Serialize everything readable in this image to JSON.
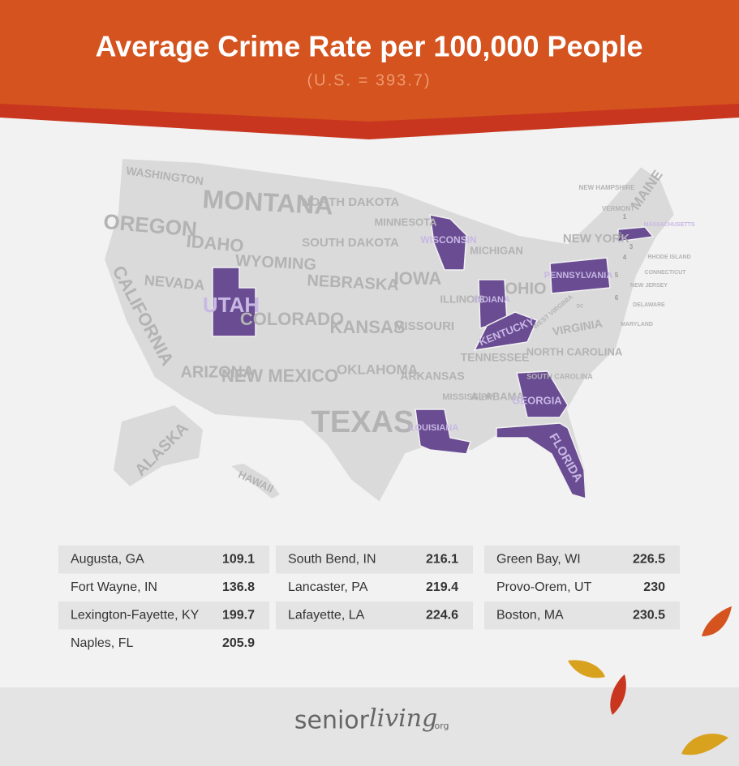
{
  "header": {
    "title": "Average Crime Rate per 100,000 People",
    "subtitle": "(U.S. = 393.7)"
  },
  "map": {
    "states": [
      {
        "name": "WASHINGTON",
        "highlighted": false
      },
      {
        "name": "OREGON",
        "highlighted": false
      },
      {
        "name": "CALIFORNIA",
        "highlighted": false
      },
      {
        "name": "NEVADA",
        "highlighted": false
      },
      {
        "name": "IDAHO",
        "highlighted": false
      },
      {
        "name": "MONTANA",
        "highlighted": false
      },
      {
        "name": "WYOMING",
        "highlighted": false
      },
      {
        "name": "UTAH",
        "highlighted": true
      },
      {
        "name": "COLORADO",
        "highlighted": false
      },
      {
        "name": "ARIZONA",
        "highlighted": false
      },
      {
        "name": "NEW MEXICO",
        "highlighted": false
      },
      {
        "name": "NORTH DAKOTA",
        "highlighted": false
      },
      {
        "name": "SOUTH DAKOTA",
        "highlighted": false
      },
      {
        "name": "NEBRASKA",
        "highlighted": false
      },
      {
        "name": "KANSAS",
        "highlighted": false
      },
      {
        "name": "OKLAHOMA",
        "highlighted": false
      },
      {
        "name": "TEXAS",
        "highlighted": false
      },
      {
        "name": "MINNESOTA",
        "highlighted": false
      },
      {
        "name": "IOWA",
        "highlighted": false
      },
      {
        "name": "MISSOURI",
        "highlighted": false
      },
      {
        "name": "ARKANSAS",
        "highlighted": false
      },
      {
        "name": "LOUISIANA",
        "highlighted": true
      },
      {
        "name": "WISCONSIN",
        "highlighted": true
      },
      {
        "name": "ILLINOIS",
        "highlighted": false
      },
      {
        "name": "MICHIGAN",
        "highlighted": false
      },
      {
        "name": "INDIANA",
        "highlighted": true
      },
      {
        "name": "OHIO",
        "highlighted": false
      },
      {
        "name": "KENTUCKY",
        "highlighted": true
      },
      {
        "name": "TENNESSEE",
        "highlighted": false
      },
      {
        "name": "MISSISSIPPI",
        "highlighted": false
      },
      {
        "name": "ALABAMA",
        "highlighted": false
      },
      {
        "name": "GEORGIA",
        "highlighted": true
      },
      {
        "name": "FLORIDA",
        "highlighted": true
      },
      {
        "name": "SOUTH CAROLINA",
        "highlighted": false
      },
      {
        "name": "NORTH CAROLINA",
        "highlighted": false
      },
      {
        "name": "VIRGINIA",
        "highlighted": false
      },
      {
        "name": "WEST VIRGINIA",
        "highlighted": false
      },
      {
        "name": "PENNSYLVANIA",
        "highlighted": true
      },
      {
        "name": "NEW YORK",
        "highlighted": false
      },
      {
        "name": "MAINE",
        "highlighted": false
      },
      {
        "name": "VERMONT",
        "highlighted": false
      },
      {
        "name": "NEW HAMPSHIRE",
        "highlighted": false
      },
      {
        "name": "MASSACHUSETTS",
        "highlighted": true
      },
      {
        "name": "RHODE ISLAND",
        "highlighted": false
      },
      {
        "name": "CONNECTICUT",
        "highlighted": false
      },
      {
        "name": "NEW JERSEY",
        "highlighted": false
      },
      {
        "name": "DELAWARE",
        "highlighted": false
      },
      {
        "name": "MARYLAND",
        "highlighted": false
      },
      {
        "name": "ALASKA",
        "highlighted": false
      },
      {
        "name": "HAWAII",
        "highlighted": false
      },
      {
        "name": "DC",
        "highlighted": false
      }
    ],
    "markers": [
      "1",
      "2",
      "3",
      "4",
      "5",
      "6"
    ]
  },
  "table": {
    "columns": [
      [
        [
          "Augusta, GA",
          109.1
        ],
        [
          "Fort Wayne, IN",
          136.8
        ],
        [
          "Lexington-Fayette, KY",
          199.7
        ],
        [
          "Naples, FL",
          205.9
        ]
      ],
      [
        [
          "South Bend, IN",
          216.1
        ],
        [
          "Lancaster, PA",
          219.4
        ],
        [
          "Lafayette, LA",
          224.6
        ]
      ],
      [
        [
          "Green Bay, WI",
          226.5
        ],
        [
          "Provo-Orem, UT",
          230
        ],
        [
          "Boston, MA",
          230.5
        ]
      ]
    ]
  },
  "footer": {
    "logo_a": "senior",
    "logo_b": "living",
    "logo_suffix": ".org"
  }
}
